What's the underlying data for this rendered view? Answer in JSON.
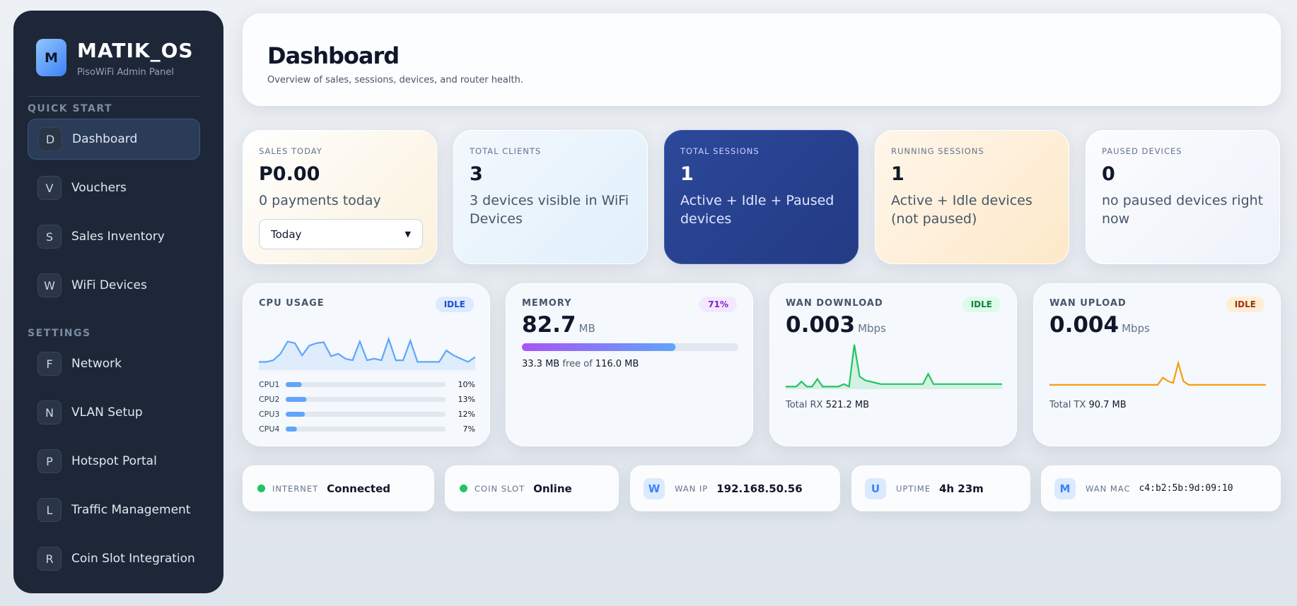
{
  "sidebar": {
    "logo": "M",
    "brand": "MATIK_OS",
    "subtitle": "PisoWiFi Admin Panel",
    "sections": [
      {
        "title": "QUICK START",
        "items": [
          {
            "icon": "D",
            "label": "Dashboard"
          },
          {
            "icon": "V",
            "label": "Vouchers"
          },
          {
            "icon": "S",
            "label": "Sales Inventory"
          },
          {
            "icon": "W",
            "label": "WiFi Devices"
          }
        ]
      },
      {
        "title": "SETTINGS",
        "items": [
          {
            "icon": "F",
            "label": "Network"
          },
          {
            "icon": "N",
            "label": "VLAN Setup"
          },
          {
            "icon": "P",
            "label": "Hotspot Portal"
          },
          {
            "icon": "L",
            "label": "Traffic Management"
          },
          {
            "icon": "R",
            "label": "Coin Slot Integration"
          }
        ]
      }
    ]
  },
  "header": {
    "title": "Dashboard",
    "subtitle": "Overview of sales, sessions, devices, and router health."
  },
  "stats": [
    {
      "label": "SALES TODAY",
      "value": "P0.00",
      "note": "0 payments today",
      "select": "Today"
    },
    {
      "label": "TOTAL CLIENTS",
      "value": "3",
      "note": "3 devices visible in WiFi Devices"
    },
    {
      "label": "TOTAL SESSIONS",
      "value": "1",
      "note": "Active + Idle + Paused devices"
    },
    {
      "label": "RUNNING SESSIONS",
      "value": "1",
      "note": "Active + Idle devices (not paused)"
    },
    {
      "label": "PAUSED DEVICES",
      "value": "0",
      "note": "no paused devices right now"
    }
  ],
  "monitors": {
    "cpu": {
      "label": "CPU USAGE",
      "badge": "IDLE",
      "history": [
        10,
        10,
        12,
        20,
        35,
        33,
        18,
        30,
        33,
        34,
        17,
        20,
        14,
        12,
        35,
        12,
        14,
        12,
        38,
        12,
        12,
        36,
        10,
        10,
        10,
        10,
        24,
        18,
        14,
        10,
        16
      ],
      "cores": [
        {
          "name": "CPU1",
          "usage": {
            "value": 10,
            "label": "10%"
          }
        },
        {
          "name": "CPU2",
          "usage": {
            "value": 13,
            "label": "13%"
          }
        },
        {
          "name": "CPU3",
          "usage": {
            "value": 12,
            "label": "12%"
          }
        },
        {
          "name": "CPU4",
          "usage": {
            "value": 7,
            "label": "7%"
          }
        }
      ]
    },
    "memory": {
      "label": "MEMORY",
      "badge": {
        "value": 71,
        "label": "71%"
      },
      "value": "82.7",
      "unit": "MB",
      "free": "33.3 MB",
      "free_of": "free of",
      "total": "116.0 MB"
    },
    "download": {
      "label": "WAN DOWNLOAD",
      "badge": "IDLE",
      "value": "0.003",
      "unit": "Mbps",
      "total_label": "Total RX",
      "total": "521.2 MB",
      "history": [
        0.002,
        0.002,
        0.002,
        0.006,
        0.002,
        0.002,
        0.008,
        0.002,
        0.002,
        0.002,
        0.002,
        0.004,
        0.002,
        0.035,
        0.01,
        0.007,
        0.006,
        0.005,
        0.004,
        0.004,
        0.004,
        0.004,
        0.004,
        0.004,
        0.004,
        0.004,
        0.004,
        0.012,
        0.004,
        0.004,
        0.004,
        0.004,
        0.004,
        0.004,
        0.004,
        0.004,
        0.004,
        0.004,
        0.004,
        0.004,
        0.004,
        0.004
      ]
    },
    "upload": {
      "label": "WAN UPLOAD",
      "badge": "IDLE",
      "value": "0.004",
      "unit": "Mbps",
      "total_label": "Total TX",
      "total": "90.7 MB",
      "history": [
        0.004,
        0.004,
        0.004,
        0.004,
        0.004,
        0.004,
        0.004,
        0.004,
        0.004,
        0.004,
        0.004,
        0.004,
        0.004,
        0.004,
        0.004,
        0.004,
        0.004,
        0.004,
        0.004,
        0.004,
        0.004,
        0.004,
        0.012,
        0.008,
        0.006,
        0.028,
        0.008,
        0.004,
        0.004,
        0.004,
        0.004,
        0.004,
        0.004,
        0.004,
        0.004,
        0.004,
        0.004,
        0.004,
        0.004,
        0.004,
        0.004,
        0.004,
        0.004
      ]
    }
  },
  "status": [
    {
      "label": "INTERNET",
      "value": "Connected"
    },
    {
      "label": "COIN SLOT",
      "value": "Online"
    },
    {
      "icon": "W",
      "label": "WAN IP",
      "value": "192.168.50.56"
    },
    {
      "icon": "U",
      "label": "UPTIME",
      "value": "4h 23m"
    },
    {
      "icon": "M",
      "label": "WAN MAC",
      "value": "c4:b2:5b:9d:09:10"
    }
  ]
}
